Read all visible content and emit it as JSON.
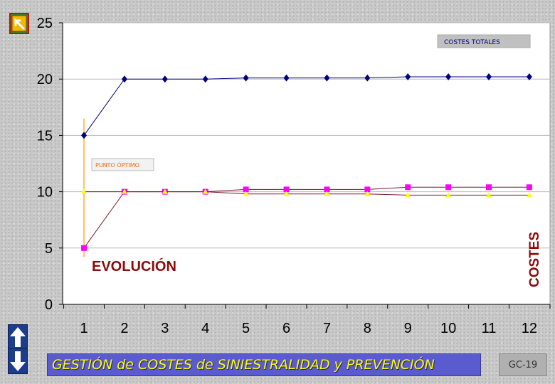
{
  "chart_data": {
    "type": "line",
    "categories": [
      "1",
      "2",
      "3",
      "4",
      "5",
      "6",
      "7",
      "8",
      "9",
      "10",
      "11",
      "12"
    ],
    "ylim": [
      0,
      25
    ],
    "yticks": [
      "0",
      "5",
      "10",
      "15",
      "20",
      "25"
    ],
    "grid": true,
    "series": [
      {
        "name": "COSTES TOTALES",
        "color": "#000080",
        "marker": "diamond",
        "values": [
          15,
          20,
          20,
          20,
          20.1,
          20.1,
          20.1,
          20.1,
          20.2,
          20.2,
          20.2,
          20.2
        ]
      },
      {
        "color": "#ff00ff",
        "marker": "square",
        "values": [
          5,
          10,
          10,
          10,
          10.2,
          10.2,
          10.2,
          10.2,
          10.4,
          10.4,
          10.4,
          10.4
        ]
      },
      {
        "color": "#ffff00",
        "marker": "triangle",
        "values": [
          10,
          10,
          10,
          10,
          9.8,
          9.8,
          9.8,
          9.8,
          9.7,
          9.7,
          9.7,
          9.7
        ]
      }
    ],
    "optimum_line": {
      "x": 1,
      "label": "PUNTO ÓPTIMO",
      "color": "#ff9900"
    },
    "annotations": {
      "legend_label": "COSTES TOTALES",
      "optimum_label": "PUNTO ÓPTIMO",
      "evolucion": "EVOLUCIÓN",
      "costes": "COSTES"
    }
  },
  "footer": {
    "title": "GESTIÓN de COSTES de SINIESTRALIDAD y PREVENCIÓN",
    "page_code": "GC-19"
  },
  "colors": {
    "plot_bg": "#ffffff",
    "annotation_text": "#8b0a0a",
    "banner_bg": "#5b5bd0",
    "banner_text": "#ffff00"
  },
  "icons": {
    "back": "back-arrow-icon",
    "up": "arrow-up-icon",
    "down": "arrow-down-icon"
  }
}
